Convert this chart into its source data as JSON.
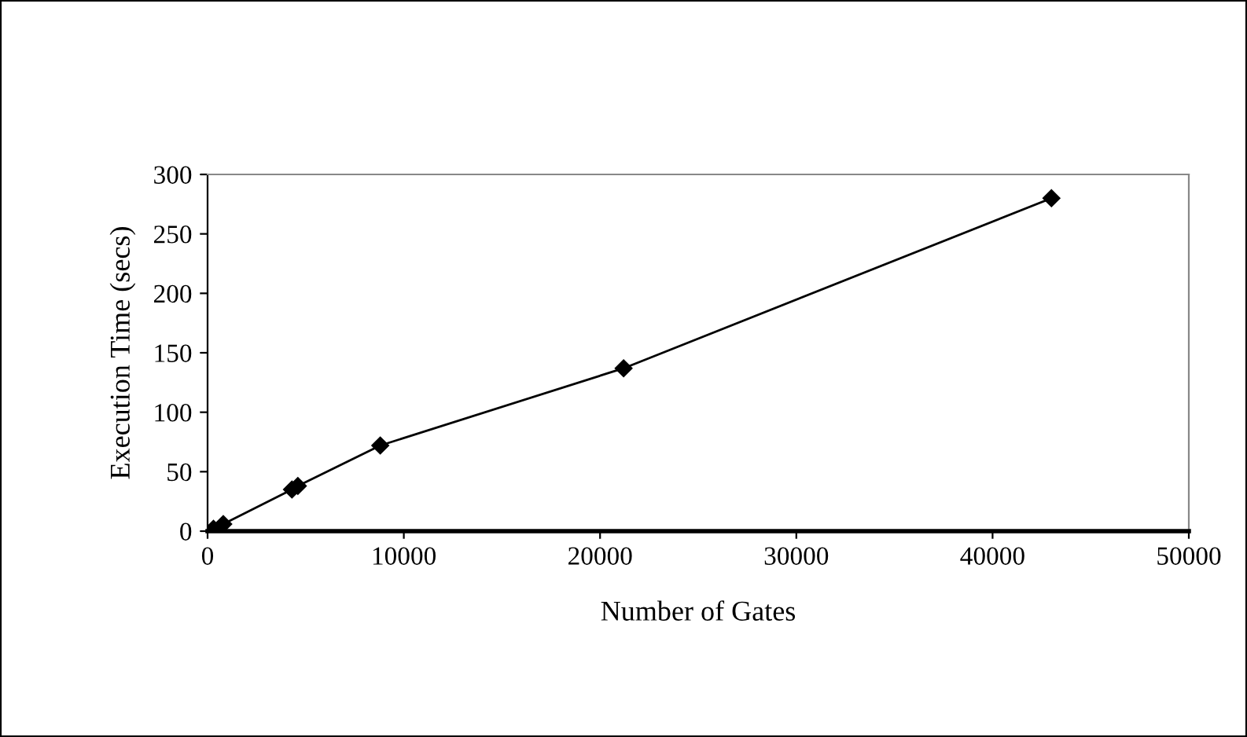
{
  "chart_data": {
    "type": "line",
    "xlabel": "Number of Gates",
    "ylabel": "Execution Time (secs)",
    "x": [
      300,
      800,
      4300,
      4600,
      8800,
      21200,
      43000
    ],
    "series": [
      {
        "color": "#000000",
        "values": [
          2,
          6,
          35,
          38,
          72,
          137,
          280
        ]
      }
    ],
    "xlim": [
      0,
      50000
    ],
    "xticks": [
      0,
      10000,
      20000,
      30000,
      40000,
      50000
    ],
    "ylim": [
      0,
      300
    ],
    "yticks": [
      0,
      50,
      100,
      150,
      200,
      250,
      300
    ],
    "grid": false,
    "legend": false,
    "marker": "diamond",
    "line_style": "solid"
  }
}
